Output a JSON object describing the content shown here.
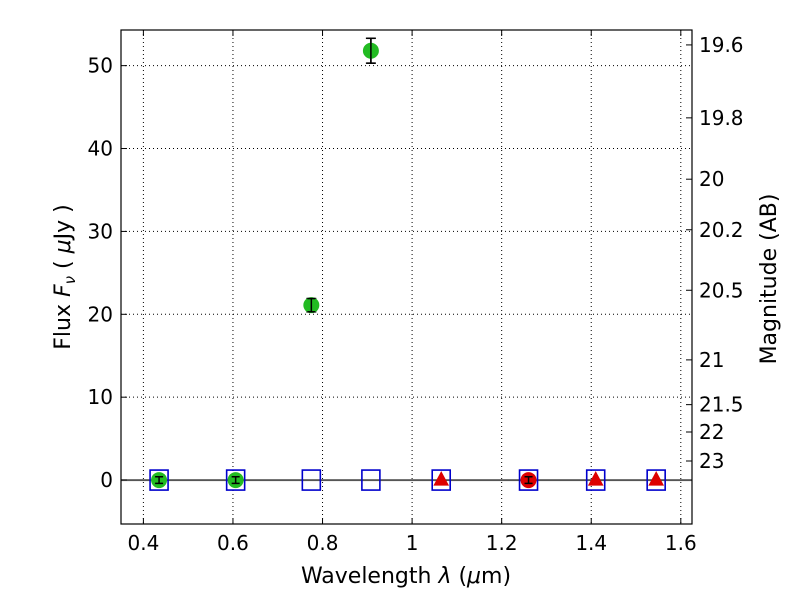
{
  "chart_data": {
    "type": "scatter",
    "xlabel": "Wavelength  λ (μm)",
    "ylabel": "Flux  F_ν  ( μJy )",
    "ylabel_parts": {
      "prefix": "Flux  ",
      "var": "F",
      "sub": "ν",
      "open": "  ( ",
      "mu": "μ",
      "unit": "Jy )"
    },
    "xlabel_parts": {
      "prefix": "Wavelength  ",
      "var": "λ",
      "open": " (",
      "mu": "μ",
      "unit": "m)"
    },
    "y2label": "Magnitude (AB)",
    "xlim": [
      0.35,
      1.625
    ],
    "ylim": [
      -5.3,
      54.3
    ],
    "grid": true,
    "xticks": [
      0.4,
      0.6,
      0.8,
      1.0,
      1.2,
      1.4,
      1.6
    ],
    "xtick_labels": [
      "0.4",
      "0.6",
      "0.8",
      "1",
      "1.2",
      "1.4",
      "1.6"
    ],
    "yticks": [
      0,
      10,
      20,
      30,
      40,
      50
    ],
    "ytick_labels": [
      "0",
      "10",
      "20",
      "30",
      "40",
      "50"
    ],
    "y2ticks": [
      {
        "label": "19.6",
        "flux": 52.5
      },
      {
        "label": "19.8",
        "flux": 43.7
      },
      {
        "label": "20",
        "flux": 36.3
      },
      {
        "label": "20.2",
        "flux": 30.2
      },
      {
        "label": "20.5",
        "flux": 22.9
      },
      {
        "label": "21",
        "flux": 14.5
      },
      {
        "label": "21.5",
        "flux": 9.1
      },
      {
        "label": "22",
        "flux": 5.8
      },
      {
        "label": "23",
        "flux": 2.3
      }
    ],
    "zero_line": 0,
    "series": [
      {
        "marker": "square-open",
        "color": "#0000cc",
        "points": [
          {
            "x": 0.435,
            "y": 0
          },
          {
            "x": 0.606,
            "y": 0
          },
          {
            "x": 0.775,
            "y": 0
          },
          {
            "x": 0.908,
            "y": 0
          },
          {
            "x": 1.065,
            "y": 0
          },
          {
            "x": 1.26,
            "y": 0
          },
          {
            "x": 1.41,
            "y": 0
          },
          {
            "x": 1.545,
            "y": 0
          }
        ]
      },
      {
        "marker": "circle",
        "color": "#22bb22",
        "points": [
          {
            "x": 0.435,
            "y": 0,
            "err": 0.4
          },
          {
            "x": 0.606,
            "y": 0,
            "err": 0.4
          },
          {
            "x": 0.775,
            "y": 21.1,
            "err": 0.8
          },
          {
            "x": 0.908,
            "y": 51.8,
            "err": 1.5
          }
        ]
      },
      {
        "marker": "circle",
        "color": "#dd0000",
        "points": [
          {
            "x": 1.26,
            "y": 0,
            "err": 0.4
          }
        ]
      },
      {
        "marker": "triangle",
        "color": "#dd0000",
        "points": [
          {
            "x": 1.065,
            "y": 0
          },
          {
            "x": 1.41,
            "y": 0
          },
          {
            "x": 1.545,
            "y": 0
          }
        ]
      }
    ]
  }
}
